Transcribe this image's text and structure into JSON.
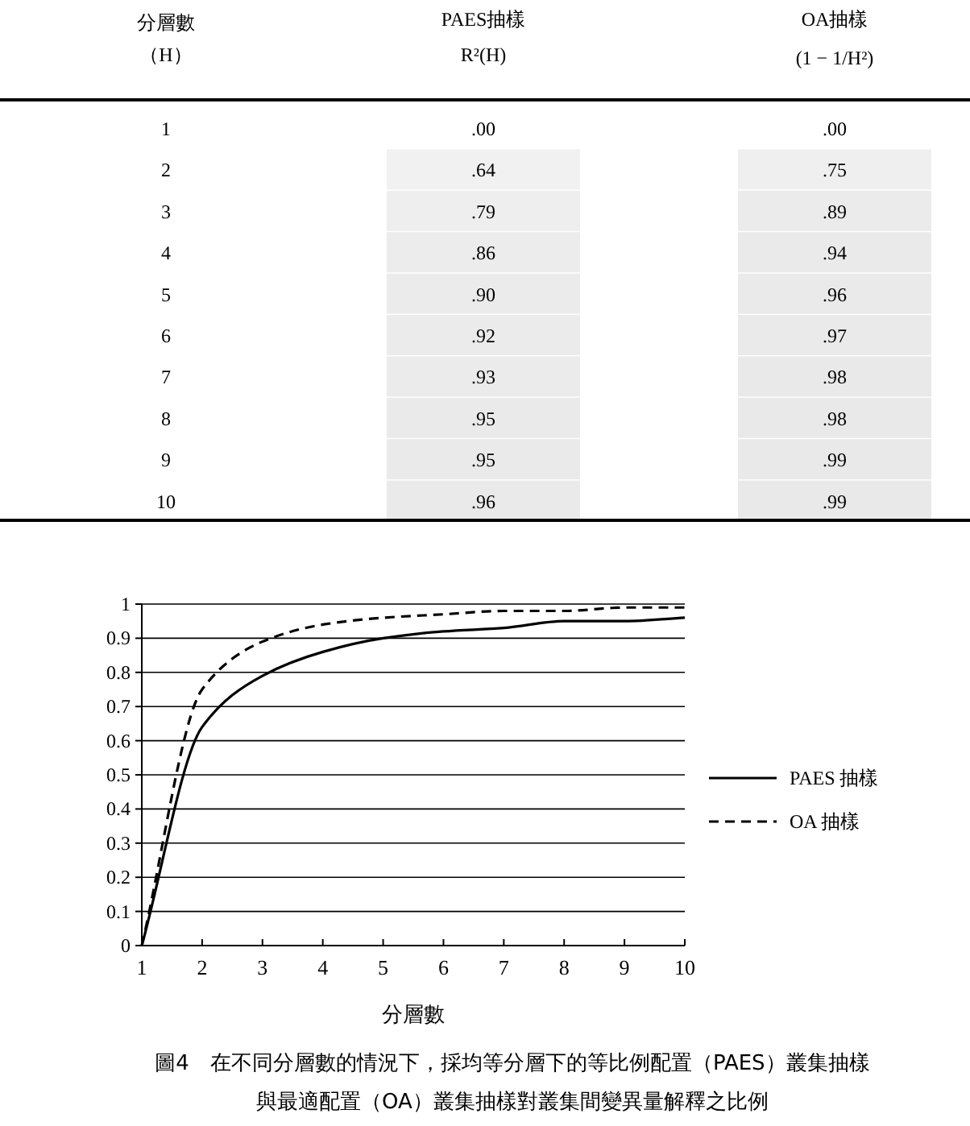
{
  "chart_data": [
    {
      "type": "heatmap",
      "categories": [
        "PAES抽樣",
        "OA抽樣"
      ],
      "y_categories": [
        "1",
        "2",
        "3",
        "4",
        "5",
        "6",
        "7",
        "8",
        "9",
        "10"
      ],
      "cells": [
        [
          0,
          0
        ],
        [
          0.64,
          0.75
        ],
        [
          0.79,
          0.89
        ],
        [
          0.86,
          0.94
        ],
        [
          0.9,
          0.96
        ],
        [
          0.92,
          0.97
        ],
        [
          0.93,
          0.98
        ],
        [
          0.95,
          0.98
        ],
        [
          0.95,
          0.99
        ],
        [
          0.96,
          0.99
        ]
      ],
      "cell_labels": [
        [
          ".00",
          ".00"
        ],
        [
          ".64",
          ".75"
        ],
        [
          ".79",
          ".89"
        ],
        [
          ".86",
          ".94"
        ],
        [
          ".90",
          ".96"
        ],
        [
          ".92",
          ".97"
        ],
        [
          ".93",
          ".98"
        ],
        [
          ".95",
          ".98"
        ],
        [
          ".95",
          ".99"
        ],
        [
          ".96",
          ".99"
        ]
      ],
      "annotations": [
        "分層數",
        "（H）",
        "R²(H)",
        "(1 − 1/H²)"
      ]
    },
    {
      "type": "line",
      "xlabel": "分層數",
      "x": [
        1,
        2,
        3,
        4,
        5,
        6,
        7,
        8,
        9,
        10
      ],
      "series": [
        {
          "name": "PAES 抽樣",
          "color": "#000000",
          "line_style": "solid",
          "values": [
            0,
            0.64,
            0.79,
            0.86,
            0.9,
            0.92,
            0.93,
            0.95,
            0.95,
            0.96
          ]
        },
        {
          "name": "OA 抽樣",
          "color": "#000000",
          "line_style": "dashed",
          "values": [
            0,
            0.75,
            0.89,
            0.94,
            0.96,
            0.97,
            0.98,
            0.98,
            0.99,
            0.99
          ]
        }
      ],
      "xlim": [
        1,
        10
      ],
      "ylim": [
        0,
        1
      ],
      "xticks": [
        1,
        2,
        3,
        4,
        5,
        6,
        7,
        8,
        9,
        10
      ],
      "yticks": [
        0,
        0.1,
        0.2,
        0.3,
        0.4,
        0.5,
        0.6,
        0.7,
        0.8,
        0.9,
        1
      ],
      "grid": "y",
      "legend": "right",
      "annotations": [
        "圖4　在不同分層數的情況下，採均等分層下的等比例配置（PAES）叢集抽樣",
        "與最適配置（OA）叢集抽樣對叢集間變異量解釋之比例"
      ]
    }
  ]
}
